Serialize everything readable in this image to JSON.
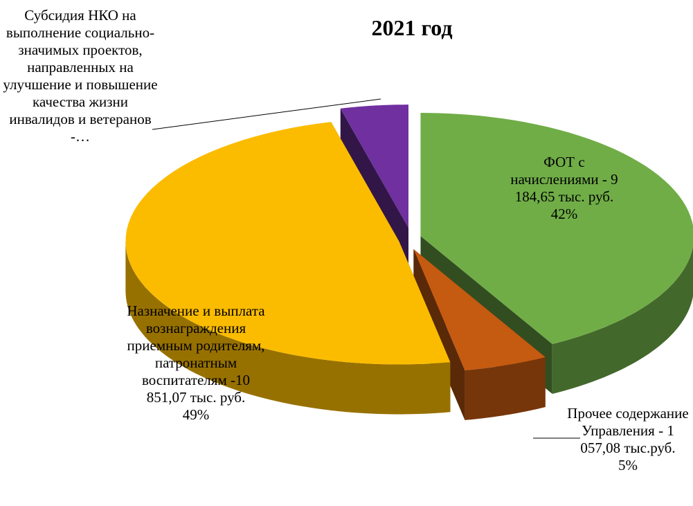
{
  "chart_data": {
    "type": "pie",
    "title": "2021 год",
    "categories": [
      "ФОТ с начислениями - 9 184,65 тыс. руб.",
      "Прочее содержание Управления - 1 057,08 тыс.руб.",
      "Назначение и выплата вознаграждения приемным родителям, патронатным воспитателям -10 851,07 тыс. руб.",
      "Субсидия НКО на выполнение социально-значимых проектов, направленных на улучшение и повышение качества жизни инвалидов и ветеранов -…"
    ],
    "values": [
      42,
      5,
      49,
      4
    ],
    "value_labels": [
      "42%",
      "5%",
      "49%",
      null
    ],
    "colors": [
      "#70ad47",
      "#c55a11",
      "#fbbc00",
      "#7030a0"
    ]
  }
}
